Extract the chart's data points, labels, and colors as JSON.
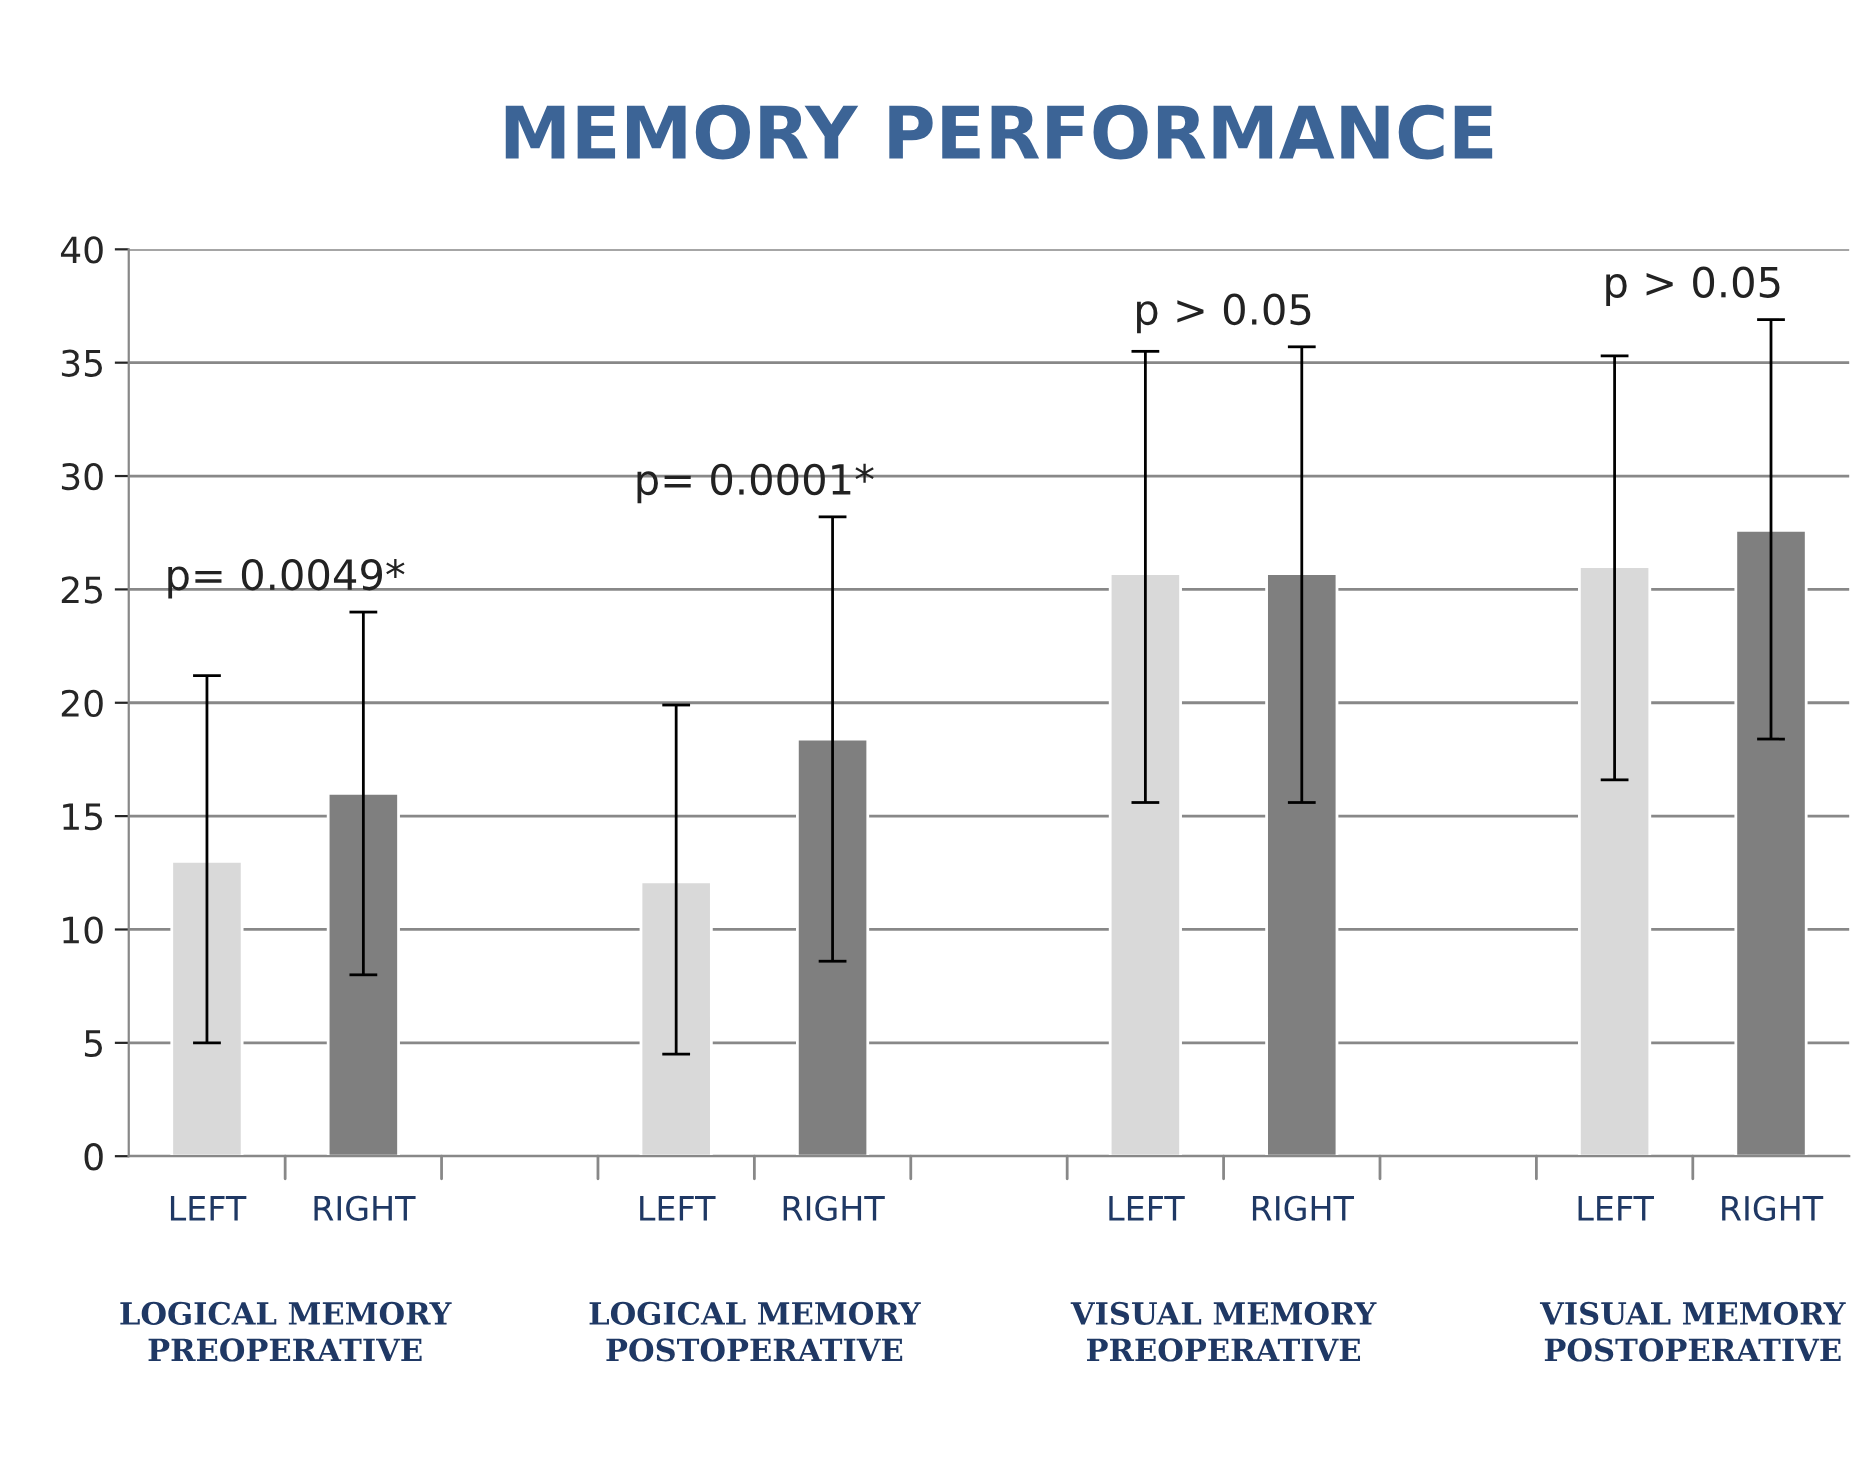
{
  "chart_data": {
    "type": "bar",
    "title": "MEMORY PERFORMANCE",
    "categories": [
      "LEFT",
      "RIGHT",
      null,
      "LEFT",
      "RIGHT",
      null,
      "LEFT",
      "RIGHT",
      null,
      "LEFT",
      "RIGHT"
    ],
    "values": [
      13.0,
      16.0,
      null,
      12.1,
      18.4,
      null,
      25.7,
      25.7,
      null,
      26.0,
      27.6
    ],
    "errors": [
      [
        5.0,
        21.2
      ],
      [
        8.0,
        24.0
      ],
      null,
      [
        4.5,
        19.9
      ],
      [
        8.6,
        28.2
      ],
      null,
      [
        15.6,
        35.5
      ],
      [
        15.6,
        35.7
      ],
      null,
      [
        16.6,
        35.3
      ],
      [
        18.4,
        36.9
      ]
    ],
    "colors": [
      "#d9d9d9",
      "#7f7f7f",
      "#d9d9d9",
      "#d9d9d9",
      "#7f7f7f",
      "#d9d9d9",
      "#d9d9d9",
      "#7f7f7f",
      "#d9d9d9",
      "#d9d9d9",
      "#7f7f7f"
    ],
    "ylim": [
      0,
      40
    ],
    "yticks": [
      0,
      5,
      10,
      15,
      20,
      25,
      30,
      35,
      40
    ],
    "grid": "y",
    "annotations": [
      "p= 0.0049*",
      "p= 0.0001*",
      "p > 0.05",
      "p > 0.05",
      "LOGICAL MEMORY\nPREOPERATIVE",
      "LOGICAL MEMORY\nPOSTOPERATIVE",
      "VISUAL MEMORY\nPREOPERATIVE",
      "VISUAL MEMORY\nPOSTOPERATIVE"
    ]
  }
}
